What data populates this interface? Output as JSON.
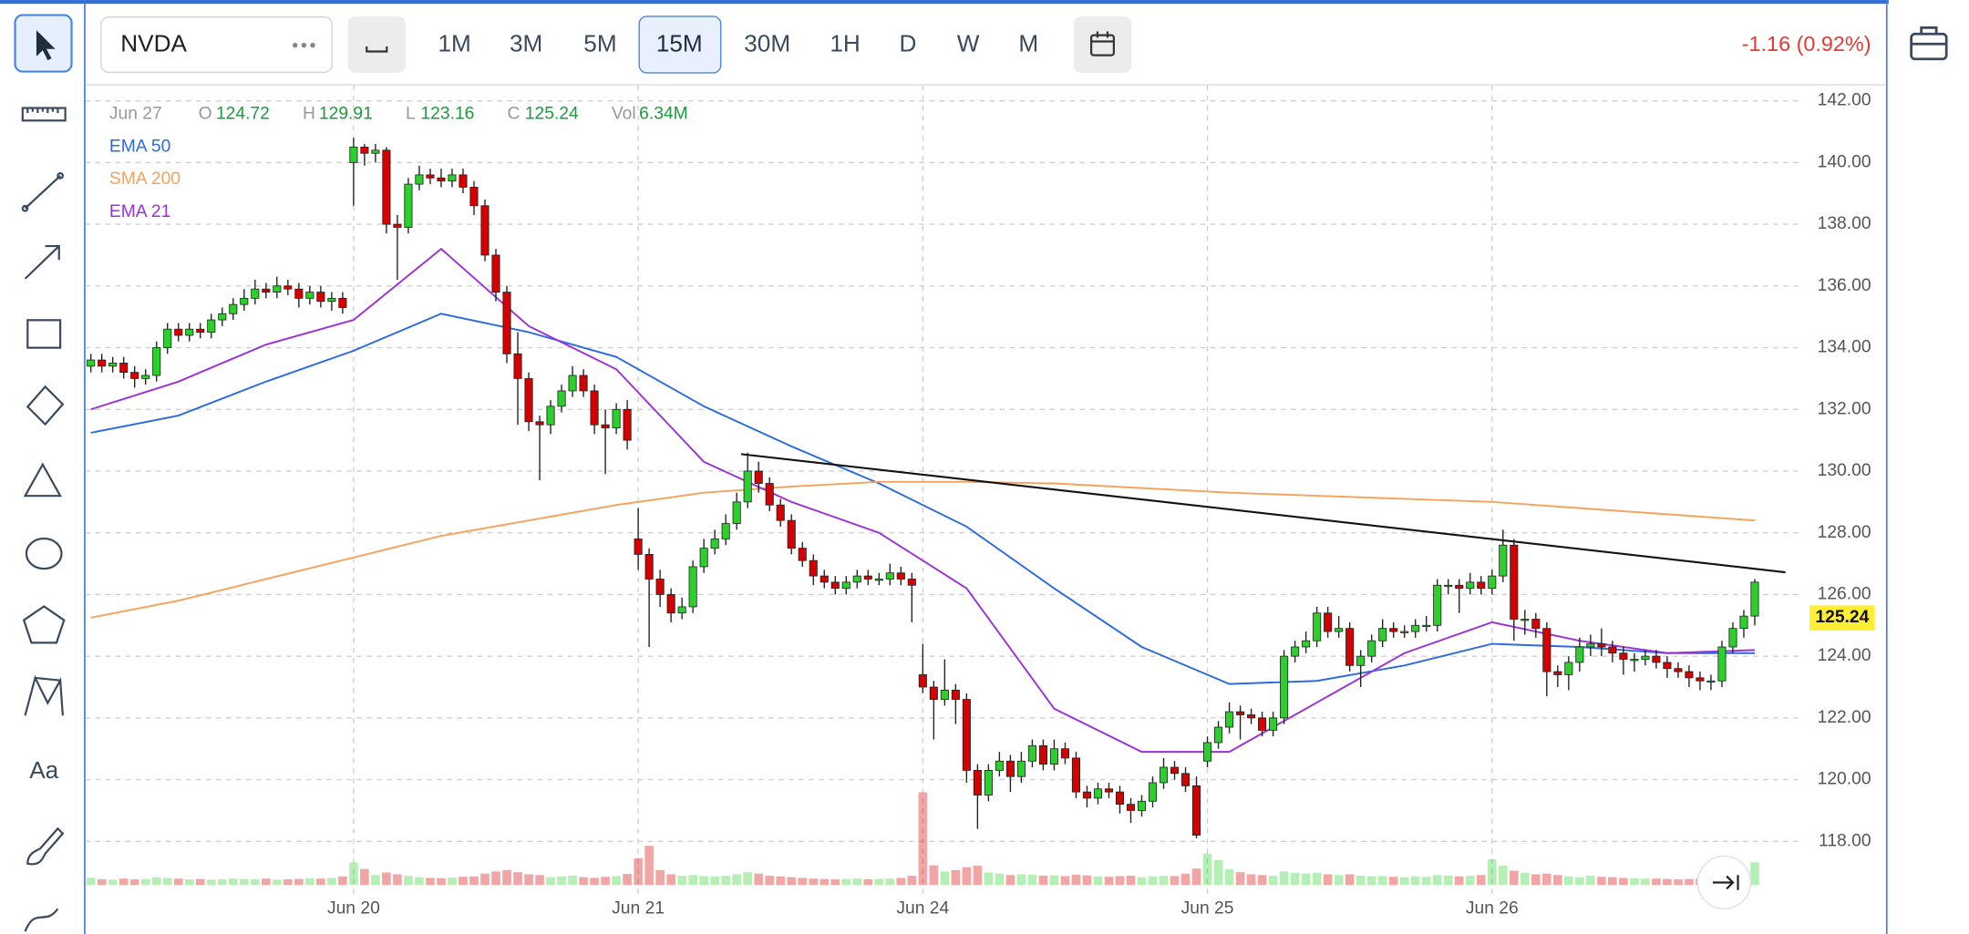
{
  "toolbar": {
    "symbol": "NVDA",
    "timeframes": [
      "1M",
      "3M",
      "5M",
      "15M",
      "30M",
      "1H",
      "D",
      "W",
      "M"
    ],
    "active_timeframe": "15M",
    "change": "-1.16 (0.92%)"
  },
  "tools": {
    "text_tool": "Aa"
  },
  "chart_data": {
    "type": "candlestick",
    "header": {
      "date": "Jun 27",
      "fields": [
        {
          "name": "O",
          "value": 124.72
        },
        {
          "name": "H",
          "value": 129.91
        },
        {
          "name": "L",
          "value": 123.16
        },
        {
          "name": "C",
          "value": 125.24
        },
        {
          "name": "Vol",
          "value": "6.34M"
        }
      ]
    },
    "xlim": [
      -0.5,
      164
    ],
    "xticks": [
      {
        "value": 24,
        "label": "Jun 20"
      },
      {
        "value": 50,
        "label": "Jun 21"
      },
      {
        "value": 76,
        "label": "Jun 24"
      },
      {
        "value": 102,
        "label": "Jun 25"
      },
      {
        "value": 128,
        "label": "Jun 26"
      }
    ],
    "ylim": [
      116.3,
      142.5
    ],
    "yticks": [
      {
        "value": 118,
        "label": "118.00"
      },
      {
        "value": 120,
        "label": "120.00"
      },
      {
        "value": 122,
        "label": "122.00"
      },
      {
        "value": 124,
        "label": "124.00"
      },
      {
        "value": 126,
        "label": "126.00"
      },
      {
        "value": 128,
        "label": "128.00"
      },
      {
        "value": 130,
        "label": "130.00"
      },
      {
        "value": 132,
        "label": "132.00"
      },
      {
        "value": 134,
        "label": "134.00"
      },
      {
        "value": 136,
        "label": "136.00"
      },
      {
        "value": 138,
        "label": "138.00"
      },
      {
        "value": 140,
        "label": "140.00"
      },
      {
        "value": 142,
        "label": "142.00"
      }
    ],
    "grid": true,
    "up_color": "#2bd12b",
    "down_color": "#d60000",
    "open": [
      133.4,
      133.6,
      133.4,
      133.5,
      133.2,
      133.0,
      133.1,
      134.0,
      134.6,
      134.4,
      134.6,
      134.5,
      134.9,
      135.1,
      135.4,
      135.6,
      135.9,
      135.8,
      136.0,
      135.9,
      135.6,
      135.8,
      135.5,
      135.6,
      140.0,
      140.5,
      140.3,
      140.4,
      138.0,
      137.9,
      139.3,
      139.6,
      139.5,
      139.4,
      139.6,
      139.2,
      138.6,
      137.0,
      135.8,
      133.8,
      133.0,
      131.6,
      131.5,
      132.1,
      132.6,
      133.1,
      132.6,
      131.5,
      131.4,
      132.0,
      127.8,
      127.3,
      126.5,
      126.0,
      125.4,
      125.6,
      126.9,
      127.5,
      127.8,
      128.3,
      129.0,
      130.0,
      129.6,
      128.9,
      128.4,
      127.5,
      127.1,
      126.6,
      126.4,
      126.2,
      126.4,
      126.6,
      126.5,
      126.5,
      126.7,
      126.5,
      123.4,
      123.0,
      122.6,
      122.9,
      122.6,
      120.3,
      119.5,
      120.3,
      120.6,
      120.1,
      120.6,
      121.1,
      120.5,
      121.0,
      120.7,
      119.6,
      119.4,
      119.7,
      119.6,
      119.2,
      119.0,
      119.3,
      119.9,
      120.4,
      120.2,
      119.8,
      120.6,
      121.2,
      121.7,
      122.2,
      122.1,
      122.0,
      121.6,
      122.0,
      124.0,
      124.3,
      124.5,
      125.4,
      124.8,
      124.9,
      123.7,
      124.0,
      124.5,
      124.9,
      124.8,
      124.8,
      125.0,
      125.0,
      126.3,
      126.3,
      126.2,
      126.4,
      126.2,
      126.6,
      127.6,
      125.2,
      125.2,
      124.9,
      123.5,
      123.4,
      123.8,
      124.3,
      124.4,
      124.3,
      124.1,
      123.9,
      123.9,
      124.0,
      123.8,
      123.6,
      123.5,
      123.3,
      123.2,
      123.2,
      124.3,
      124.9,
      125.3
    ],
    "high": [
      133.8,
      133.8,
      133.7,
      133.7,
      133.4,
      133.3,
      134.2,
      134.8,
      134.8,
      134.8,
      134.8,
      135.1,
      135.3,
      135.6,
      135.9,
      136.2,
      136.1,
      136.3,
      136.2,
      136.1,
      136.0,
      136.0,
      135.8,
      135.8,
      140.8,
      140.6,
      140.6,
      140.5,
      138.3,
      139.5,
      139.9,
      139.8,
      139.8,
      139.8,
      139.8,
      139.4,
      138.8,
      137.2,
      136.0,
      134.5,
      133.2,
      131.8,
      132.3,
      132.8,
      133.4,
      133.3,
      132.8,
      132.0,
      132.2,
      132.3,
      128.8,
      127.5,
      126.8,
      126.2,
      125.9,
      127.1,
      127.8,
      128.1,
      128.6,
      129.3,
      130.6,
      130.3,
      129.8,
      129.1,
      128.6,
      127.7,
      127.3,
      126.8,
      126.6,
      126.6,
      126.8,
      126.8,
      126.7,
      127.0,
      126.9,
      126.7,
      124.4,
      123.2,
      123.9,
      123.1,
      122.8,
      120.5,
      120.5,
      120.9,
      120.8,
      120.9,
      121.3,
      121.3,
      121.3,
      121.2,
      120.9,
      119.8,
      119.9,
      119.9,
      119.8,
      119.4,
      119.5,
      120.1,
      120.7,
      120.6,
      120.4,
      120.1,
      121.4,
      121.9,
      122.5,
      122.4,
      122.3,
      122.2,
      122.2,
      124.2,
      124.5,
      124.8,
      125.6,
      125.6,
      125.3,
      125.1,
      124.2,
      124.7,
      125.2,
      125.1,
      125.0,
      125.2,
      125.3,
      126.5,
      126.5,
      126.5,
      126.7,
      126.6,
      126.8,
      128.1,
      127.8,
      125.5,
      125.4,
      125.1,
      123.7,
      124.0,
      124.6,
      124.7,
      124.9,
      124.5,
      124.3,
      124.1,
      124.2,
      124.2,
      124.0,
      123.8,
      123.7,
      123.5,
      123.4,
      124.5,
      125.1,
      125.5,
      126.5
    ],
    "low": [
      133.2,
      133.2,
      133.2,
      133.0,
      132.7,
      132.8,
      132.9,
      133.8,
      134.2,
      134.2,
      134.3,
      134.3,
      134.7,
      134.9,
      135.2,
      135.4,
      135.6,
      135.6,
      135.7,
      135.3,
      135.4,
      135.3,
      135.2,
      135.1,
      138.6,
      139.9,
      140.0,
      137.7,
      136.2,
      137.7,
      139.1,
      139.3,
      139.2,
      139.2,
      139.0,
      138.3,
      136.8,
      135.5,
      133.5,
      131.5,
      131.3,
      129.7,
      131.2,
      131.9,
      132.4,
      132.4,
      131.2,
      129.9,
      131.2,
      130.7,
      126.8,
      124.3,
      125.6,
      125.1,
      125.2,
      125.4,
      126.7,
      127.3,
      127.6,
      128.1,
      128.8,
      129.3,
      128.7,
      128.2,
      127.3,
      126.9,
      126.3,
      126.2,
      126.0,
      126.0,
      126.2,
      126.3,
      126.3,
      126.3,
      126.3,
      125.1,
      122.8,
      121.3,
      122.4,
      121.8,
      119.9,
      118.4,
      119.3,
      120.1,
      119.6,
      119.9,
      120.4,
      120.3,
      120.3,
      120.5,
      119.4,
      119.1,
      119.2,
      119.4,
      118.9,
      118.6,
      118.8,
      119.1,
      119.7,
      120.0,
      119.6,
      118.1,
      120.4,
      121.0,
      121.5,
      121.3,
      121.8,
      121.4,
      121.4,
      121.8,
      123.8,
      124.1,
      124.3,
      124.6,
      124.6,
      123.5,
      123.0,
      123.8,
      124.3,
      124.6,
      124.6,
      124.6,
      124.8,
      124.8,
      126.0,
      125.4,
      126.0,
      126.0,
      126.0,
      126.4,
      124.5,
      124.7,
      124.6,
      122.7,
      123.0,
      122.9,
      123.5,
      124.0,
      124.0,
      123.8,
      123.4,
      123.5,
      123.7,
      123.6,
      123.3,
      123.3,
      123.0,
      122.9,
      122.9,
      123.0,
      124.1,
      124.6,
      125.0
    ],
    "close": [
      133.6,
      133.4,
      133.5,
      133.2,
      133.0,
      133.1,
      134.0,
      134.6,
      134.4,
      134.6,
      134.5,
      134.9,
      135.1,
      135.4,
      135.6,
      135.9,
      135.8,
      136.0,
      135.9,
      135.6,
      135.8,
      135.5,
      135.6,
      135.3,
      140.5,
      140.3,
      140.4,
      138.0,
      137.9,
      139.3,
      139.6,
      139.5,
      139.4,
      139.6,
      139.2,
      138.6,
      137.0,
      135.8,
      133.8,
      133.0,
      131.6,
      131.5,
      132.1,
      132.6,
      133.1,
      132.6,
      131.5,
      131.4,
      132.0,
      131.0,
      127.3,
      126.5,
      126.0,
      125.4,
      125.6,
      126.9,
      127.5,
      127.8,
      128.3,
      129.0,
      130.0,
      129.6,
      128.9,
      128.4,
      127.5,
      127.1,
      126.6,
      126.4,
      126.2,
      126.4,
      126.6,
      126.5,
      126.5,
      126.7,
      126.5,
      126.3,
      123.0,
      122.6,
      122.9,
      122.6,
      120.3,
      119.5,
      120.3,
      120.6,
      120.1,
      120.6,
      121.1,
      120.5,
      121.0,
      120.7,
      119.6,
      119.4,
      119.7,
      119.6,
      119.2,
      119.0,
      119.3,
      119.9,
      120.4,
      120.2,
      119.8,
      118.2,
      121.2,
      121.7,
      122.2,
      122.1,
      122.0,
      121.6,
      122.0,
      124.0,
      124.3,
      124.5,
      125.4,
      124.8,
      124.9,
      123.7,
      124.0,
      124.5,
      124.9,
      124.8,
      124.8,
      125.0,
      125.0,
      126.3,
      126.3,
      126.2,
      126.4,
      126.2,
      126.6,
      127.6,
      125.2,
      125.2,
      124.9,
      123.5,
      123.4,
      123.8,
      124.3,
      124.4,
      124.3,
      124.1,
      123.9,
      123.9,
      124.0,
      123.8,
      123.6,
      123.5,
      123.3,
      123.2,
      123.2,
      124.3,
      124.9,
      125.3,
      126.4
    ],
    "volume": [
      2.0,
      1.6,
      1.5,
      1.8,
      1.6,
      1.7,
      2.2,
      2.0,
      1.8,
      1.6,
      1.7,
      1.5,
      1.6,
      1.8,
      1.7,
      1.6,
      1.8,
      1.5,
      1.6,
      1.7,
      1.9,
      1.8,
      2.0,
      2.4,
      6.3,
      4.5,
      2.8,
      3.5,
      3.0,
      2.6,
      2.2,
      2.0,
      1.9,
      2.1,
      2.3,
      2.4,
      3.2,
      3.8,
      4.2,
      3.6,
      3.0,
      2.8,
      2.2,
      2.4,
      2.6,
      2.2,
      2.0,
      2.3,
      2.5,
      3.1,
      7.5,
      11.0,
      4.2,
      3.0,
      2.6,
      2.8,
      2.5,
      2.4,
      2.6,
      3.0,
      3.6,
      3.2,
      2.6,
      2.4,
      2.2,
      2.0,
      1.8,
      1.7,
      1.6,
      1.7,
      1.8,
      1.6,
      1.7,
      1.8,
      2.0,
      2.6,
      26.0,
      5.5,
      3.8,
      4.2,
      5.0,
      5.4,
      3.5,
      3.2,
      2.8,
      3.0,
      2.9,
      2.6,
      2.7,
      2.5,
      2.9,
      2.7,
      2.4,
      2.3,
      2.5,
      2.6,
      2.2,
      2.4,
      2.6,
      2.5,
      3.2,
      4.6,
      8.8,
      7.0,
      4.4,
      3.6,
      3.0,
      2.8,
      2.6,
      3.8,
      3.4,
      3.2,
      3.4,
      3.0,
      2.8,
      3.0,
      2.6,
      2.4,
      2.5,
      2.3,
      2.2,
      2.4,
      2.3,
      2.8,
      2.6,
      2.4,
      2.6,
      2.8,
      7.2,
      5.4,
      4.0,
      3.4,
      3.0,
      3.2,
      2.8,
      2.4,
      2.2,
      2.6,
      2.3,
      2.2,
      2.0,
      1.9,
      1.8,
      1.8,
      1.7,
      1.6,
      1.7,
      1.8,
      1.9,
      2.4,
      2.6,
      2.8,
      6.34
    ],
    "line_x": [
      0,
      8,
      16,
      24,
      32,
      40,
      48,
      56,
      64,
      72,
      80,
      88,
      96,
      104,
      112,
      120,
      128,
      136,
      144,
      152
    ],
    "series": [
      {
        "name": "EMA 50",
        "color": "#2a6be0",
        "values": [
          131.24,
          131.8,
          132.9,
          133.9,
          135.1,
          134.5,
          133.7,
          132.1,
          130.8,
          129.6,
          128.2,
          126.2,
          124.3,
          123.1,
          123.2,
          123.7,
          124.4,
          124.3,
          124.1,
          124.1
        ]
      },
      {
        "name": "SMA 200",
        "color": "#f5a25d",
        "values": [
          125.25,
          125.8,
          126.5,
          127.2,
          127.9,
          128.4,
          128.9,
          129.3,
          129.5,
          129.65,
          129.65,
          129.6,
          129.45,
          129.3,
          129.2,
          129.1,
          129.0,
          128.8,
          128.6,
          128.4
        ]
      },
      {
        "name": "EMA 21",
        "color": "#9b30d9",
        "values": [
          132.0,
          132.9,
          134.1,
          134.9,
          137.2,
          134.7,
          133.3,
          130.3,
          129.0,
          128.0,
          126.2,
          122.3,
          120.9,
          120.9,
          122.5,
          124.1,
          125.1,
          124.5,
          124.1,
          124.2
        ]
      }
    ],
    "trendline": {
      "x": [
        59.4,
        154.8
      ],
      "values": [
        130.55,
        126.72
      ],
      "color": "#111111"
    },
    "last_price": 125.24
  }
}
